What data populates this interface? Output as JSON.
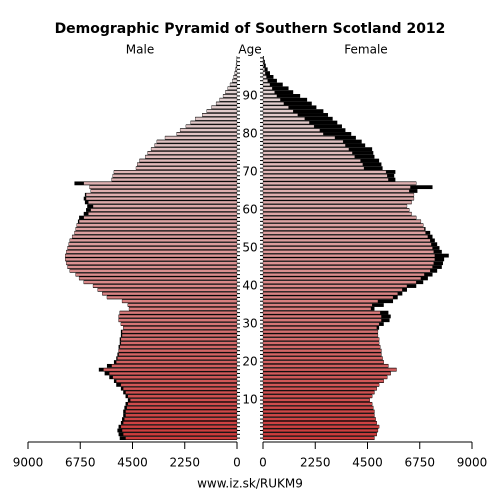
{
  "chart_data": {
    "type": "pyramid",
    "title": "Demographic Pyramid of Southern Scotland 2012",
    "left_label": "Male",
    "center_label": "Age",
    "right_label": "Female",
    "footer": "www.iz.sk/RUKM9",
    "y": [
      0,
      1,
      2,
      3,
      4,
      5,
      6,
      7,
      8,
      9,
      10,
      11,
      12,
      13,
      14,
      15,
      16,
      17,
      18,
      19,
      20,
      21,
      22,
      23,
      24,
      25,
      26,
      27,
      28,
      29,
      30,
      31,
      32,
      33,
      34,
      35,
      36,
      37,
      38,
      39,
      40,
      41,
      42,
      43,
      44,
      45,
      46,
      47,
      48,
      49,
      50,
      51,
      52,
      53,
      54,
      55,
      56,
      57,
      58,
      59,
      60,
      61,
      62,
      63,
      64,
      65,
      66,
      67,
      68,
      69,
      70,
      71,
      72,
      73,
      74,
      75,
      76,
      77,
      78,
      79,
      80,
      81,
      82,
      83,
      84,
      85,
      86,
      87,
      88,
      89,
      90,
      91,
      92,
      93,
      94,
      95,
      96,
      97,
      98,
      99,
      100
    ],
    "series": [
      {
        "name": "Male",
        "values": [
          5050,
          5100,
          5150,
          5100,
          5000,
          4950,
          4900,
          4900,
          4850,
          4800,
          4700,
          4800,
          4900,
          5000,
          5200,
          5300,
          5500,
          5700,
          5950,
          5600,
          5300,
          5200,
          5150,
          5100,
          5100,
          5050,
          5050,
          5000,
          5000,
          4900,
          5000,
          5100,
          5100,
          5050,
          4650,
          4700,
          4950,
          5600,
          5800,
          6000,
          6200,
          6600,
          6800,
          6950,
          7200,
          7300,
          7350,
          7400,
          7400,
          7350,
          7300,
          7250,
          7200,
          7100,
          7000,
          6950,
          6900,
          6850,
          6800,
          6600,
          6500,
          6450,
          6550,
          6600,
          6550,
          6300,
          6350,
          7000,
          5400,
          5350,
          5300,
          4350,
          4300,
          4200,
          3950,
          3850,
          3700,
          3550,
          3450,
          3100,
          2600,
          2450,
          2200,
          2000,
          1800,
          1500,
          1300,
          1100,
          900,
          750,
          600,
          500,
          400,
          300,
          200,
          150,
          100,
          70,
          40,
          25,
          15
        ]
      },
      {
        "name": "Female",
        "values": [
          4800,
          4900,
          4950,
          5000,
          4900,
          4850,
          4800,
          4800,
          4750,
          4700,
          4600,
          4700,
          4800,
          4900,
          5000,
          5200,
          5350,
          5500,
          5750,
          5400,
          5200,
          5150,
          5100,
          5100,
          5050,
          5000,
          5000,
          4950,
          4950,
          5000,
          5200,
          5450,
          5500,
          5400,
          4800,
          5200,
          5600,
          5800,
          6000,
          6200,
          6600,
          6900,
          7100,
          7300,
          7500,
          7700,
          7750,
          7800,
          8000,
          7700,
          7600,
          7500,
          7400,
          7300,
          7200,
          7000,
          6900,
          6800,
          6600,
          6400,
          6300,
          6200,
          6400,
          6500,
          6500,
          6650,
          7300,
          6600,
          5700,
          5650,
          5700,
          5150,
          5100,
          5000,
          4800,
          4750,
          4700,
          4400,
          4250,
          4000,
          3800,
          3550,
          3400,
          3200,
          3000,
          2800,
          2600,
          2300,
          2100,
          1900,
          1600,
          1300,
          1100,
          850,
          600,
          450,
          300,
          200,
          120,
          80,
          40
        ]
      }
    ],
    "excess_color": "#000000",
    "xlim": [
      0,
      9000
    ],
    "xticks": [
      9000,
      6750,
      4500,
      2250,
      0
    ],
    "ylim": [
      -0.5,
      100.5
    ],
    "yticks": [
      10,
      20,
      30,
      40,
      50,
      60,
      70,
      80,
      90
    ]
  }
}
